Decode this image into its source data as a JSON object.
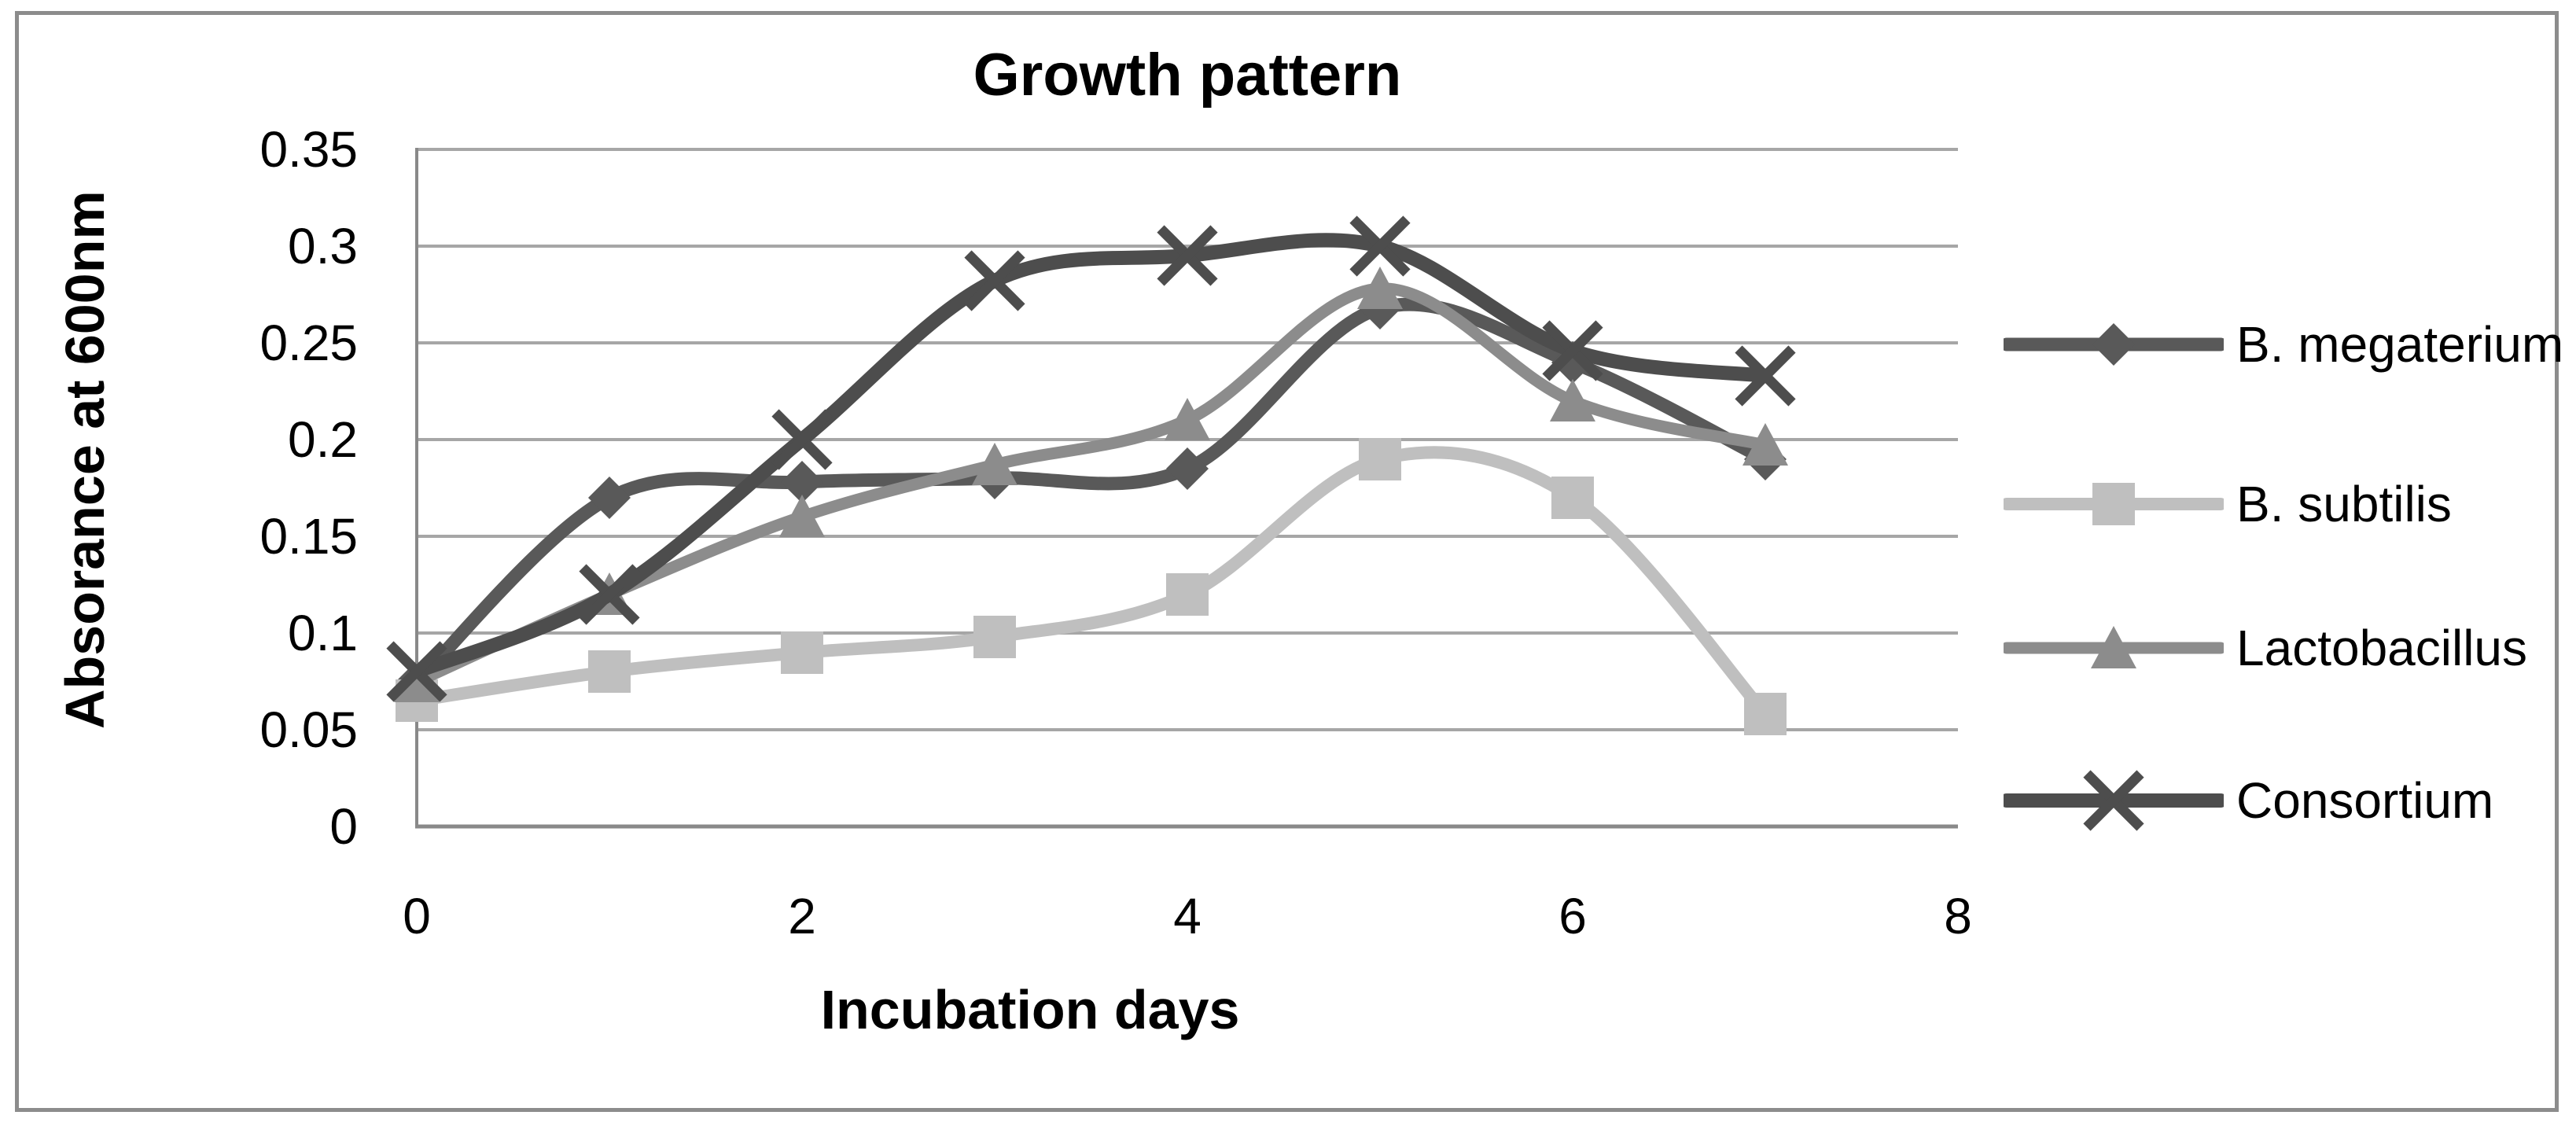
{
  "page": {
    "background": "#ffffff",
    "border_color": "#8c8c8c"
  },
  "chart_data": {
    "type": "line",
    "title": "Growth pattern",
    "xlabel": "Incubation days",
    "ylabel": "Absorance at 600nm",
    "x": [
      0,
      1,
      2,
      3,
      4,
      5,
      6,
      7
    ],
    "series": [
      {
        "name": "B. megaterium",
        "marker": "diamond",
        "color": "#595959",
        "values": [
          0.075,
          0.17,
          0.178,
          0.18,
          0.185,
          0.268,
          0.24,
          0.19
        ]
      },
      {
        "name": "B. subtilis",
        "marker": "square",
        "color": "#bfbfbf",
        "values": [
          0.065,
          0.08,
          0.09,
          0.098,
          0.12,
          0.19,
          0.17,
          0.058
        ]
      },
      {
        "name": "Lactobacillus",
        "marker": "triangle",
        "color": "#8c8c8c",
        "values": [
          0.075,
          0.12,
          0.16,
          0.187,
          0.21,
          0.278,
          0.22,
          0.197
        ]
      },
      {
        "name": "Consortium",
        "marker": "x",
        "color": "#4d4d4d",
        "values": [
          0.08,
          0.12,
          0.2,
          0.282,
          0.295,
          0.3,
          0.246,
          0.233
        ]
      }
    ],
    "xlim": [
      0,
      8
    ],
    "ylim": [
      0,
      0.35
    ],
    "xticks": {
      "values": [
        0,
        2,
        4,
        6,
        8
      ],
      "labels": [
        "0",
        "2",
        "4",
        "6",
        "8"
      ]
    },
    "yticks": {
      "values": [
        0,
        0.05,
        0.1,
        0.15,
        0.2,
        0.25,
        0.3,
        0.35
      ],
      "labels": [
        "0",
        "0.05",
        "0.1",
        "0.15",
        "0.2",
        "0.25",
        "0.3",
        "0.35"
      ]
    },
    "grid": true,
    "legend_position": "right",
    "colors": {
      "gridline": "#a6a6a6",
      "axis": "#898989",
      "text": "#000000"
    }
  }
}
